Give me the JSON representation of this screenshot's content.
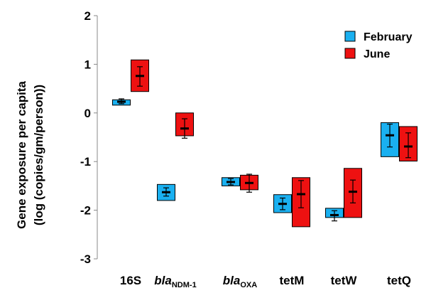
{
  "chart_data": {
    "type": "box",
    "ylabel_lines": [
      "Gene exposure per capita",
      "(log (copies/gm/person))"
    ],
    "ylim": [
      -3,
      2
    ],
    "yticks": [
      "2",
      "1",
      "0",
      "-1",
      "-2",
      "-3"
    ],
    "categories": [
      {
        "main": "16S",
        "sub": "",
        "italic": false
      },
      {
        "main": "bla",
        "sub": "NDM-1",
        "italic": true
      },
      {
        "main": "bla",
        "sub": "OXA",
        "italic": true
      },
      {
        "main": "tetM",
        "sub": "",
        "italic": false
      },
      {
        "main": "tetW",
        "sub": "",
        "italic": false
      },
      {
        "main": "tetQ",
        "sub": "",
        "italic": false
      }
    ],
    "legend": {
      "position": "top-right"
    },
    "series": [
      {
        "name": "February",
        "color": "#1ab0f0",
        "boxes": [
          {
            "low": 0.16,
            "high": 0.27,
            "mean": 0.23,
            "err_low": 0.19,
            "err_high": 0.29
          },
          {
            "low": -1.8,
            "high": -1.47,
            "mean": -1.63,
            "err_low": -1.71,
            "err_high": -1.54
          },
          {
            "low": -1.5,
            "high": -1.33,
            "mean": -1.42,
            "err_low": -1.48,
            "err_high": -1.35
          },
          {
            "low": -2.05,
            "high": -1.68,
            "mean": -1.87,
            "err_low": -1.99,
            "err_high": -1.75
          },
          {
            "low": -2.15,
            "high": -1.96,
            "mean": -2.1,
            "err_low": -2.22,
            "err_high": -2.01
          },
          {
            "low": -0.9,
            "high": -0.2,
            "mean": -0.46,
            "err_low": -0.7,
            "err_high": -0.23
          }
        ]
      },
      {
        "name": "June",
        "color": "#ee1111",
        "boxes": [
          {
            "low": 0.44,
            "high": 1.09,
            "mean": 0.76,
            "err_low": 0.55,
            "err_high": 0.95
          },
          {
            "low": -0.47,
            "high": 0.0,
            "mean": -0.32,
            "err_low": -0.52,
            "err_high": -0.12
          },
          {
            "low": -1.58,
            "high": -1.28,
            "mean": -1.44,
            "err_low": -1.63,
            "err_high": -1.26
          },
          {
            "low": -2.34,
            "high": -1.33,
            "mean": -1.67,
            "err_low": -1.95,
            "err_high": -1.39
          },
          {
            "low": -2.15,
            "high": -1.14,
            "mean": -1.62,
            "err_low": -1.85,
            "err_high": -1.38
          },
          {
            "low": -0.99,
            "high": -0.28,
            "mean": -0.69,
            "err_low": -0.92,
            "err_high": -0.41
          }
        ]
      }
    ]
  }
}
